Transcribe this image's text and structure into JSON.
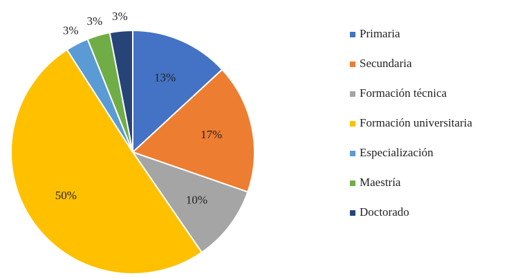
{
  "chart_data": {
    "type": "pie",
    "categories": [
      "Primaria",
      "Secundaria",
      "Formación técnica",
      "Formación universitaria",
      "Especialización",
      "Maestría",
      "Doctorado"
    ],
    "values": [
      13,
      17,
      10,
      50,
      3,
      3,
      3
    ],
    "value_labels": [
      "13%",
      "17%",
      "10%",
      "50%",
      "3%",
      "3%",
      "3%"
    ],
    "colors": [
      "#4472c4",
      "#ed7d31",
      "#a5a5a5",
      "#ffc000",
      "#5b9bd5",
      "#70ad47",
      "#264478"
    ],
    "legend": "right"
  }
}
